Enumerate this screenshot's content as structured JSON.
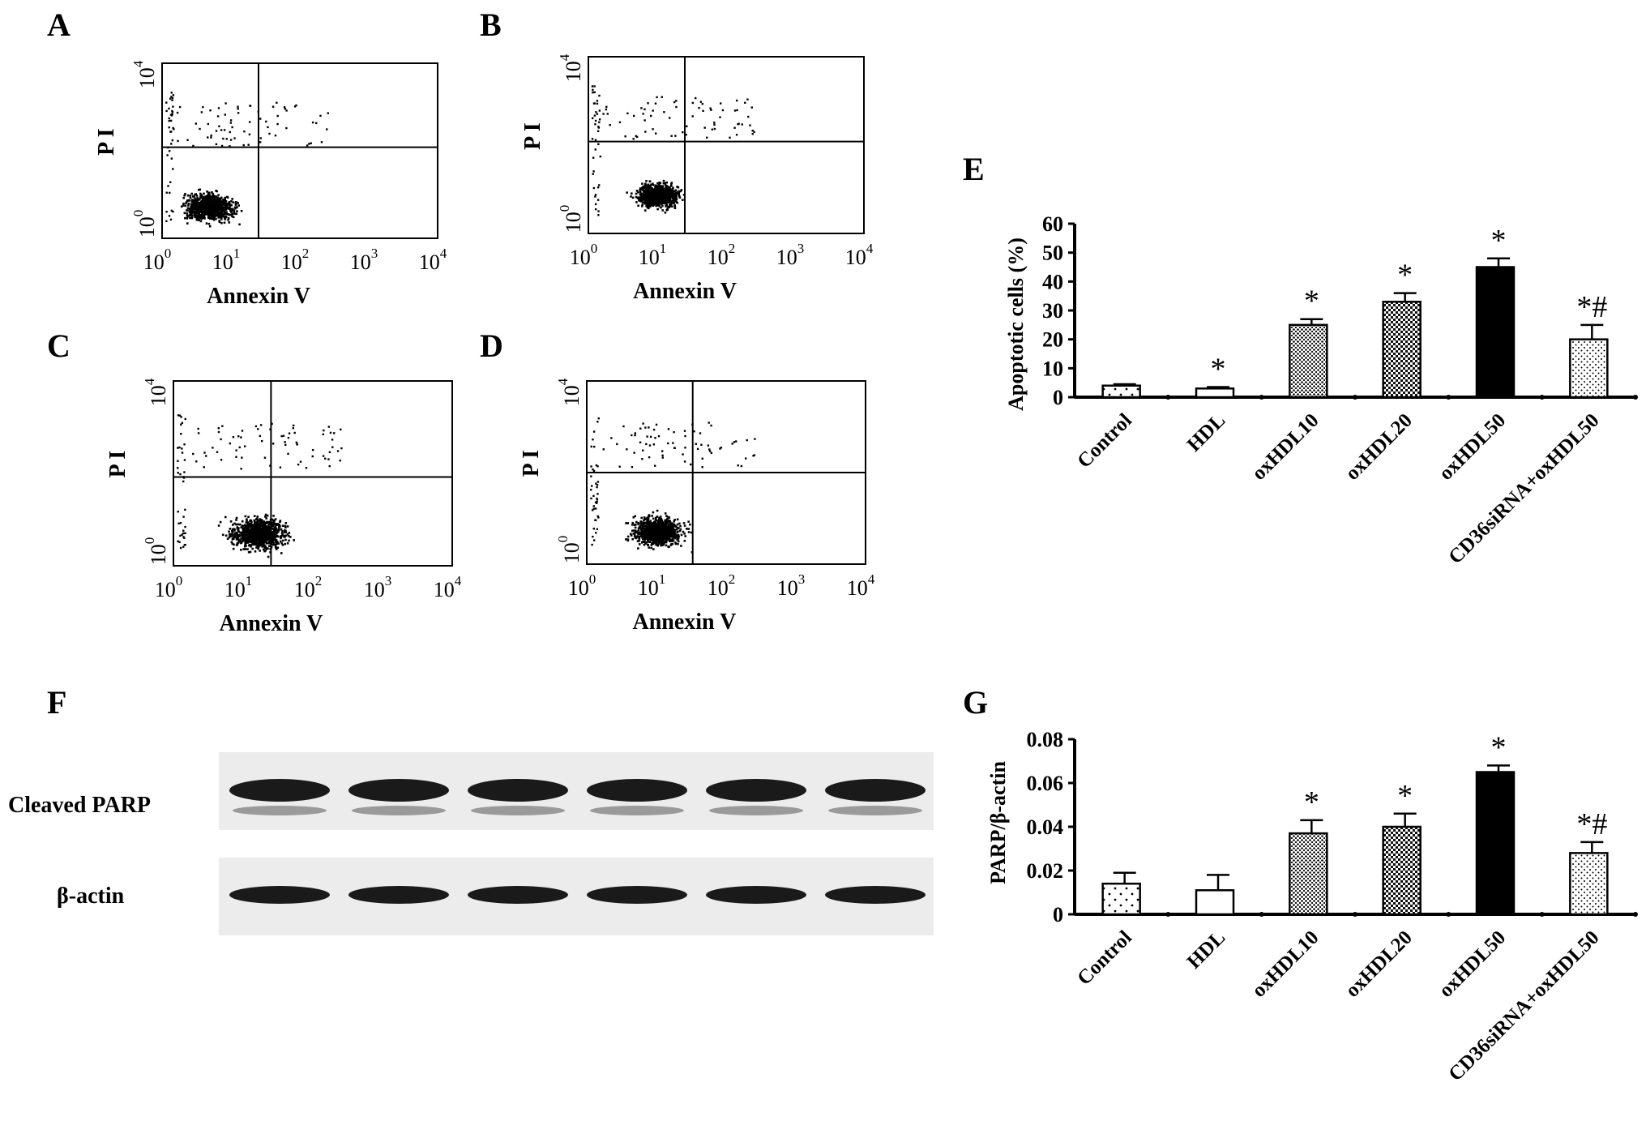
{
  "panel_letters": {
    "A": "A",
    "B": "B",
    "C": "C",
    "D": "D",
    "E": "E",
    "F": "F",
    "G": "G"
  },
  "flow_panels": {
    "ylabel": "P I",
    "xlabel": "Annexin V",
    "x_ticks": [
      {
        "base": "10",
        "exp": "0"
      },
      {
        "base": "10",
        "exp": "1"
      },
      {
        "base": "10",
        "exp": "2"
      },
      {
        "base": "10",
        "exp": "3"
      },
      {
        "base": "10",
        "exp": "4"
      }
    ],
    "y_ticks": [
      {
        "base": "10",
        "exp": "0"
      },
      {
        "base": "10",
        "exp": "4"
      }
    ]
  },
  "western": {
    "row1_label": "Cleaved PARP",
    "row2_label": "β-actin",
    "lanes": 6
  },
  "chart_data": [
    {
      "type": "bar",
      "panel": "E",
      "categories": [
        "Control",
        "HDL",
        "oxHDL10",
        "oxHDL20",
        "oxHDL50",
        "CD36siRNA+oxHDL50"
      ],
      "values": [
        4,
        3,
        25,
        33,
        45,
        20
      ],
      "errors": [
        0.5,
        0.5,
        2,
        3,
        3,
        5
      ],
      "annotations": [
        "",
        "*",
        "*",
        "*",
        "*",
        "*#"
      ],
      "ylabel": "Apoptotic cells (%)",
      "ylim": [
        0,
        60
      ],
      "yticks": [
        "0",
        "10",
        "20",
        "30",
        "40",
        "50",
        "60"
      ],
      "fills": [
        "dots-sparse",
        "white",
        "dots-dense",
        "checker",
        "black",
        "dots-fine"
      ]
    },
    {
      "type": "bar",
      "panel": "G",
      "categories": [
        "Control",
        "HDL",
        "oxHDL10",
        "oxHDL20",
        "oxHDL50",
        "CD36siRNA+oxHDL50"
      ],
      "values": [
        0.014,
        0.011,
        0.037,
        0.04,
        0.065,
        0.028
      ],
      "errors": [
        0.005,
        0.007,
        0.006,
        0.006,
        0.003,
        0.005
      ],
      "annotations": [
        "",
        "",
        "*",
        "*",
        "*",
        "*#"
      ],
      "ylabel": "PARP/β-actin",
      "ylim": [
        0,
        0.08
      ],
      "yticks": [
        "0",
        "0.02",
        "0.04",
        "0.06",
        "0.08"
      ],
      "fills": [
        "dots-sparse",
        "white",
        "dots-dense",
        "checker",
        "black",
        "dots-fine"
      ]
    }
  ]
}
